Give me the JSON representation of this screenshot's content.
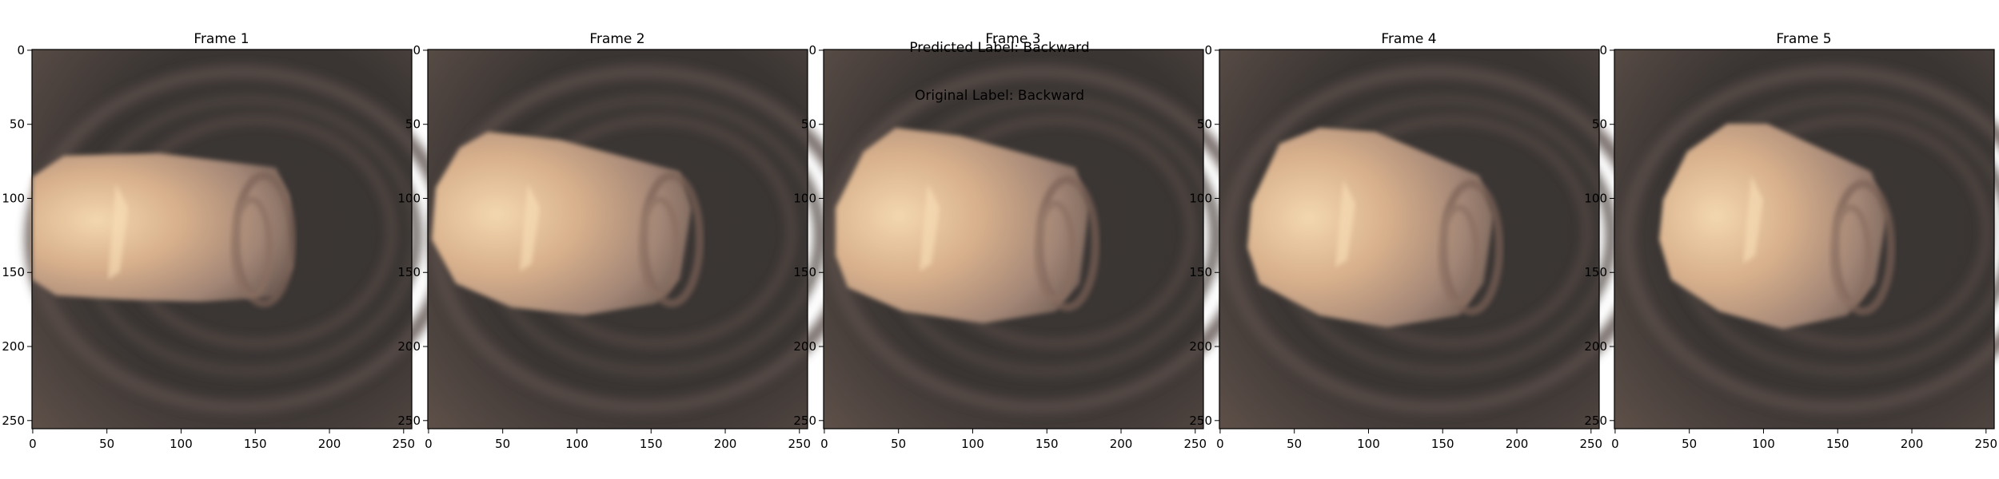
{
  "figure": {
    "suptitle_line1": "Predicted Label: Backward",
    "suptitle_line2": "Original Label: Backward"
  },
  "frames": [
    {
      "title": "Frame 1"
    },
    {
      "title": "Frame 2"
    },
    {
      "title": "Frame 3"
    },
    {
      "title": "Frame 4"
    },
    {
      "title": "Frame 5"
    }
  ],
  "axes": {
    "x_ticks": [
      "0",
      "50",
      "100",
      "150",
      "200",
      "250"
    ],
    "y_ticks": [
      "0",
      "50",
      "100",
      "150",
      "200",
      "250"
    ]
  },
  "colors": {
    "background": "#3a3634",
    "wall": "#5a4e48",
    "lumen_light": "#efd2a8",
    "lumen_mid": "#c8a184",
    "lumen_dark": "#6f5c53"
  }
}
